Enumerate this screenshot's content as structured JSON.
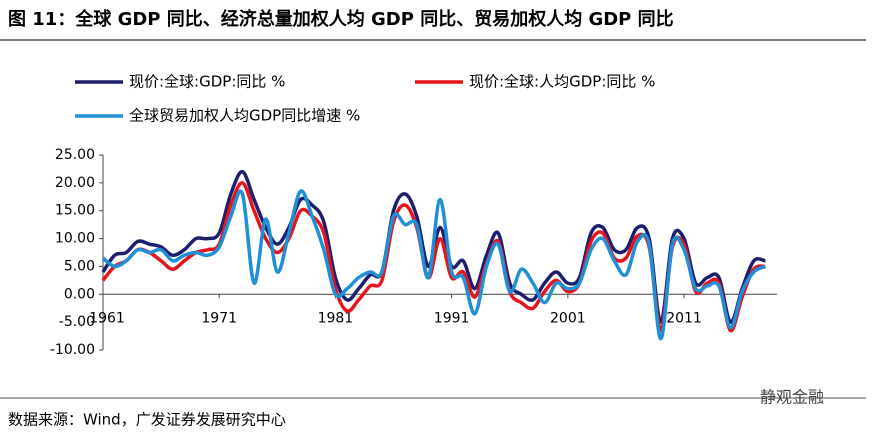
{
  "chart_data": {
    "type": "line",
    "title": "图 11：全球 GDP 同比、经济总量加权人均 GDP 同比、贸易加权人均 GDP 同比",
    "source": "数据来源：Wind，广发证券发展研究中心",
    "watermark": "静观金融",
    "x": [
      1961,
      1962,
      1963,
      1964,
      1965,
      1966,
      1967,
      1968,
      1969,
      1970,
      1971,
      1972,
      1973,
      1974,
      1975,
      1976,
      1977,
      1978,
      1979,
      1980,
      1981,
      1982,
      1983,
      1984,
      1985,
      1986,
      1987,
      1988,
      1989,
      1990,
      1991,
      1992,
      1993,
      1994,
      1995,
      1996,
      1997,
      1998,
      1999,
      2000,
      2001,
      2002,
      2003,
      2004,
      2005,
      2006,
      2007,
      2008,
      2009,
      2010,
      2011,
      2012,
      2013,
      2014,
      2015,
      2016,
      2017,
      2018
    ],
    "xlim": [
      1961,
      2019
    ],
    "xticks": [
      1961,
      1971,
      1981,
      1991,
      2001,
      2011
    ],
    "ylim": [
      -10,
      25
    ],
    "yticks": [
      {
        "value": -10,
        "label": "-10.00"
      },
      {
        "value": -5,
        "label": "-5.00"
      },
      {
        "value": 0,
        "label": "0.00"
      },
      {
        "value": 5,
        "label": "5.00"
      },
      {
        "value": 10,
        "label": "10.00"
      },
      {
        "value": 15,
        "label": "15.00"
      },
      {
        "value": 20,
        "label": "20.00"
      },
      {
        "value": 25,
        "label": "25.00"
      }
    ],
    "series": [
      {
        "name": "现价:全球:GDP:同比 %",
        "color": "#1b1f6e",
        "values": [
          4,
          7,
          7.5,
          9.5,
          9,
          8.5,
          7,
          8,
          10,
          10,
          11,
          18,
          22,
          17,
          12,
          9,
          12,
          17,
          16,
          13,
          3,
          -1,
          1,
          3.5,
          4,
          15,
          18,
          14,
          5,
          12,
          5,
          6,
          1,
          7,
          11,
          2,
          0,
          -1,
          2,
          4,
          2,
          3,
          11,
          12,
          8,
          8,
          12,
          10,
          -5,
          10,
          10,
          2,
          3,
          3,
          -5,
          1,
          6,
          6
        ]
      },
      {
        "name": "现价:全球:人均GDP:同比 %",
        "color": "#e8141b",
        "values": [
          2.5,
          5,
          6,
          8,
          7.5,
          6,
          4.5,
          6,
          7.5,
          8,
          9,
          16,
          20,
          15,
          10,
          7.5,
          10,
          15,
          14,
          11,
          1,
          -3,
          -1,
          1.5,
          2.5,
          13,
          16,
          12,
          3,
          10,
          3,
          4,
          -0.5,
          5.5,
          9.5,
          0.5,
          -1.5,
          -2.5,
          0.5,
          2.5,
          0.5,
          2,
          9.5,
          11,
          6.5,
          6.5,
          10.5,
          8.5,
          -6.5,
          8.5,
          9,
          0.5,
          2,
          2,
          -6.5,
          -0.5,
          4.5,
          5
        ]
      },
      {
        "name": "全球贸易加权人均GDP同比增速 %",
        "color": "#1f8fd6",
        "values": [
          6.5,
          5,
          6,
          8,
          7.5,
          8,
          6,
          7,
          7.5,
          7,
          8.5,
          14,
          18,
          2,
          13.5,
          4,
          11,
          18.5,
          14,
          8,
          0,
          1,
          3,
          4,
          4,
          14,
          12.5,
          12.5,
          3,
          17,
          4,
          3,
          -3.5,
          5,
          9,
          0.5,
          4.5,
          2,
          -1.5,
          2,
          1,
          2,
          8,
          10,
          6,
          3.5,
          9.5,
          9,
          -8,
          9,
          8,
          1,
          1.5,
          1.5,
          -6,
          0.5,
          4,
          5
        ]
      }
    ]
  }
}
